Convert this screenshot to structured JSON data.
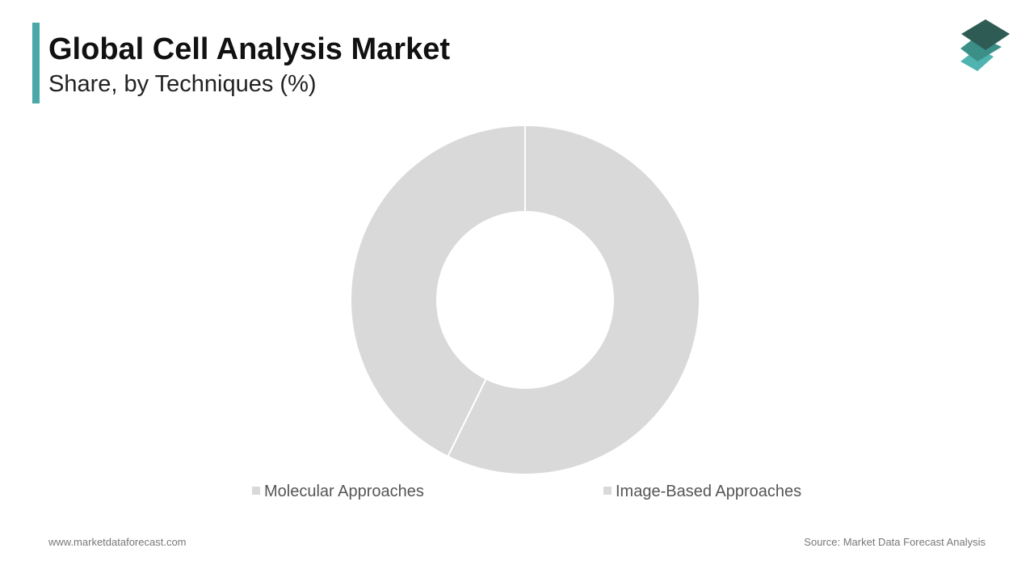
{
  "chart_data": {
    "type": "donut",
    "title": "Global Cell Analysis Market",
    "subtitle": "Share, by Techniques (%)",
    "categories": [
      "Molecular Approaches",
      "Image-Based Approaches"
    ],
    "values": [
      57.3,
      42.7
    ],
    "colors": [
      "#d9d9d9",
      "#d9d9d9"
    ]
  },
  "footer": {
    "website": "www.marketdataforecast.com",
    "source": "Source: Market Data Forecast Analysis"
  }
}
